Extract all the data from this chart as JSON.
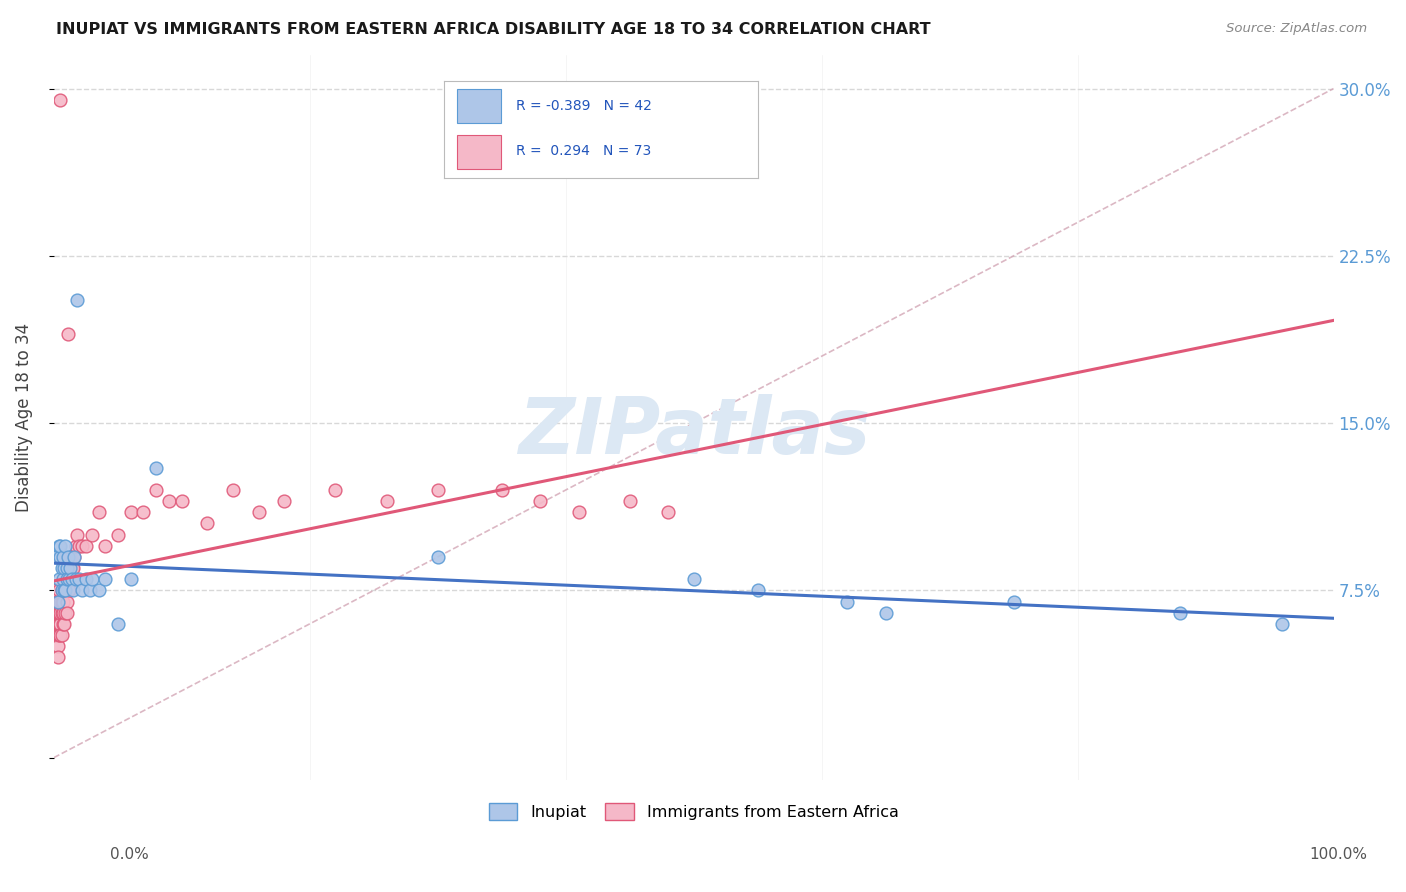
{
  "title": "INUPIAT VS IMMIGRANTS FROM EASTERN AFRICA DISABILITY AGE 18 TO 34 CORRELATION CHART",
  "source": "Source: ZipAtlas.com",
  "ylabel": "Disability Age 18 to 34",
  "ytick_vals": [
    0.0,
    0.075,
    0.15,
    0.225,
    0.3
  ],
  "ytick_labels": [
    "",
    "7.5%",
    "15.0%",
    "22.5%",
    "30.0%"
  ],
  "legend_line1": "R = -0.389   N = 42",
  "legend_line2": "R =  0.294   N = 73",
  "color_inupiat_fill": "#aec6e8",
  "color_inupiat_edge": "#5b9bd5",
  "color_immigrants_fill": "#f5b8c8",
  "color_immigrants_edge": "#e05878",
  "color_line_inupiat": "#4472c4",
  "color_line_immigrants": "#e05878",
  "color_dashed": "#d0a0b0",
  "color_grid": "#d8d8d8",
  "background_color": "#ffffff",
  "watermark_color": "#dce8f4",
  "xlim": [
    0.0,
    1.0
  ],
  "ylim": [
    -0.01,
    0.315
  ],
  "inupiat_x": [
    0.002,
    0.003,
    0.004,
    0.004,
    0.005,
    0.005,
    0.006,
    0.006,
    0.007,
    0.007,
    0.008,
    0.008,
    0.009,
    0.009,
    0.01,
    0.01,
    0.011,
    0.012,
    0.013,
    0.014,
    0.015,
    0.016,
    0.017,
    0.018,
    0.02,
    0.022,
    0.025,
    0.028,
    0.03,
    0.035,
    0.04,
    0.05,
    0.06,
    0.08,
    0.3,
    0.5,
    0.55,
    0.62,
    0.65,
    0.75,
    0.88,
    0.96
  ],
  "inupiat_y": [
    0.09,
    0.07,
    0.095,
    0.08,
    0.09,
    0.095,
    0.085,
    0.075,
    0.08,
    0.09,
    0.075,
    0.085,
    0.075,
    0.095,
    0.085,
    0.08,
    0.09,
    0.08,
    0.085,
    0.08,
    0.075,
    0.09,
    0.08,
    0.205,
    0.08,
    0.075,
    0.08,
    0.075,
    0.08,
    0.075,
    0.08,
    0.06,
    0.08,
    0.13,
    0.09,
    0.08,
    0.075,
    0.07,
    0.065,
    0.07,
    0.065,
    0.06
  ],
  "immigrants_x": [
    0.001,
    0.001,
    0.001,
    0.001,
    0.001,
    0.002,
    0.002,
    0.002,
    0.002,
    0.002,
    0.002,
    0.003,
    0.003,
    0.003,
    0.003,
    0.003,
    0.003,
    0.003,
    0.004,
    0.004,
    0.004,
    0.004,
    0.004,
    0.005,
    0.005,
    0.005,
    0.005,
    0.005,
    0.006,
    0.006,
    0.006,
    0.006,
    0.007,
    0.007,
    0.007,
    0.008,
    0.008,
    0.009,
    0.009,
    0.01,
    0.01,
    0.011,
    0.012,
    0.013,
    0.014,
    0.015,
    0.016,
    0.017,
    0.018,
    0.02,
    0.022,
    0.025,
    0.03,
    0.035,
    0.04,
    0.05,
    0.06,
    0.07,
    0.08,
    0.09,
    0.1,
    0.12,
    0.14,
    0.16,
    0.18,
    0.22,
    0.26,
    0.3,
    0.35,
    0.38,
    0.41,
    0.45,
    0.48
  ],
  "immigrants_y": [
    0.055,
    0.065,
    0.07,
    0.06,
    0.075,
    0.055,
    0.06,
    0.065,
    0.07,
    0.075,
    0.055,
    0.06,
    0.065,
    0.055,
    0.07,
    0.06,
    0.05,
    0.045,
    0.06,
    0.07,
    0.065,
    0.075,
    0.055,
    0.06,
    0.07,
    0.065,
    0.055,
    0.295,
    0.07,
    0.065,
    0.075,
    0.055,
    0.065,
    0.07,
    0.06,
    0.075,
    0.06,
    0.075,
    0.065,
    0.07,
    0.065,
    0.19,
    0.075,
    0.09,
    0.085,
    0.085,
    0.09,
    0.095,
    0.1,
    0.095,
    0.095,
    0.095,
    0.1,
    0.11,
    0.095,
    0.1,
    0.11,
    0.11,
    0.12,
    0.115,
    0.115,
    0.105,
    0.12,
    0.11,
    0.115,
    0.12,
    0.115,
    0.12,
    0.12,
    0.115,
    0.11,
    0.115,
    0.11
  ]
}
